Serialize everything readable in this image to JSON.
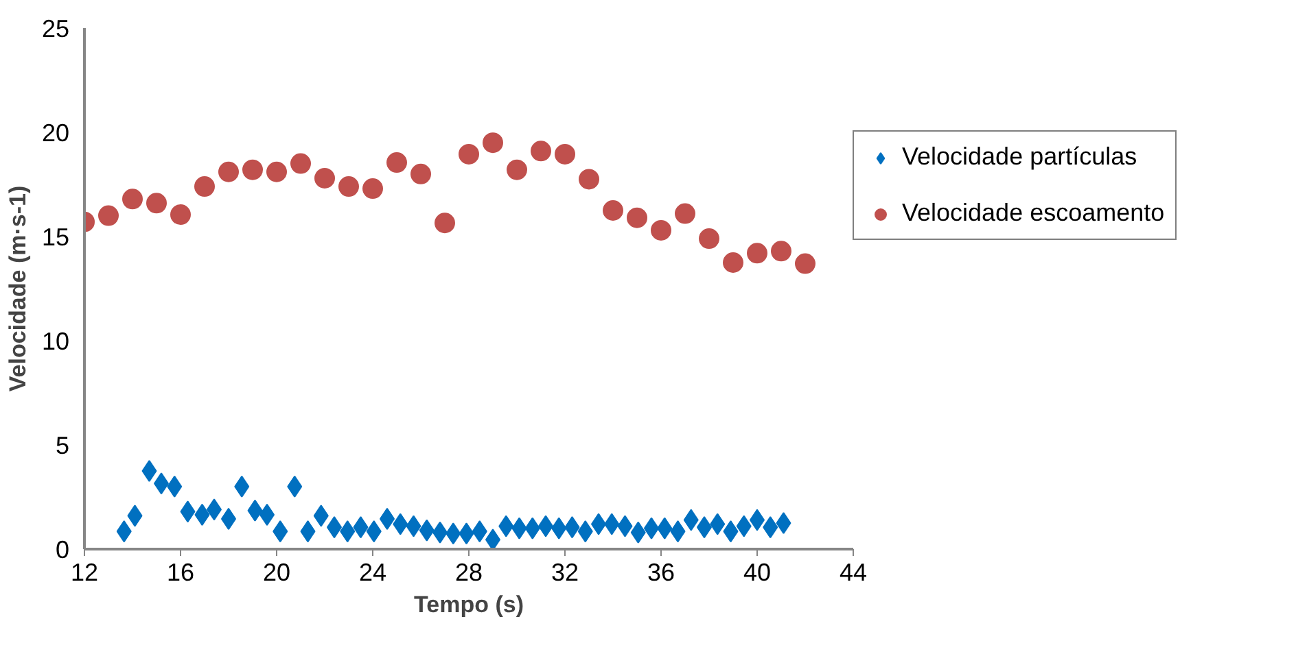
{
  "chart_data": {
    "type": "scatter",
    "xlabel": "Tempo (s)",
    "ylabel": "Velocidade (m·s-1)",
    "xlim": [
      12,
      44
    ],
    "xticks": [
      12,
      16,
      20,
      24,
      28,
      32,
      36,
      40,
      44
    ],
    "ylim": [
      0,
      25
    ],
    "yticks": [
      0,
      5,
      10,
      15,
      20,
      25
    ],
    "grid": false,
    "legend": "right",
    "series": [
      {
        "name": "Velocidade partículas",
        "color": "#0070c0",
        "marker": "diamond",
        "x": [
          13.65,
          14.1,
          14.7,
          15.2,
          15.75,
          16.3,
          16.9,
          17.4,
          18.0,
          18.55,
          19.1,
          19.6,
          20.15,
          20.75,
          21.3,
          21.85,
          22.4,
          22.95,
          23.5,
          24.05,
          24.6,
          25.15,
          25.7,
          26.25,
          26.8,
          27.35,
          27.9,
          28.45,
          29.0,
          29.55,
          30.1,
          30.65,
          31.2,
          31.75,
          32.3,
          32.85,
          33.4,
          33.95,
          34.5,
          35.05,
          35.6,
          36.15,
          36.7,
          37.25,
          37.8,
          38.35,
          38.9,
          39.45,
          40.0,
          40.55,
          41.1
        ],
        "values": [
          0.85,
          1.6,
          3.75,
          3.15,
          3.0,
          1.8,
          1.65,
          1.9,
          1.45,
          3.0,
          1.85,
          1.65,
          0.85,
          3.0,
          0.85,
          1.6,
          1.05,
          0.85,
          1.05,
          0.85,
          1.45,
          1.2,
          1.1,
          0.9,
          0.8,
          0.75,
          0.75,
          0.85,
          0.45,
          1.1,
          1.0,
          1.0,
          1.1,
          1.0,
          1.05,
          0.85,
          1.2,
          1.2,
          1.1,
          0.8,
          1.0,
          1.0,
          0.85,
          1.4,
          1.05,
          1.2,
          0.85,
          1.1,
          1.4,
          1.05,
          1.25
        ]
      },
      {
        "name": "Velocidade escoamento",
        "color": "#c0504d",
        "marker": "circle",
        "x": [
          12,
          13,
          14,
          15,
          16,
          17,
          18,
          19,
          20,
          21,
          22,
          23,
          24,
          25,
          26,
          27,
          28,
          29,
          30,
          31,
          32,
          33,
          34,
          35,
          36,
          37,
          38,
          39,
          40,
          41,
          42
        ],
        "values": [
          15.7,
          16.0,
          16.8,
          16.6,
          16.05,
          17.4,
          18.1,
          18.2,
          18.1,
          18.5,
          17.8,
          17.4,
          17.3,
          18.55,
          18.0,
          15.65,
          18.95,
          19.5,
          18.2,
          19.1,
          18.95,
          17.75,
          16.25,
          15.9,
          15.3,
          16.1,
          14.9,
          13.75,
          14.2,
          14.3,
          13.7
        ]
      }
    ]
  }
}
